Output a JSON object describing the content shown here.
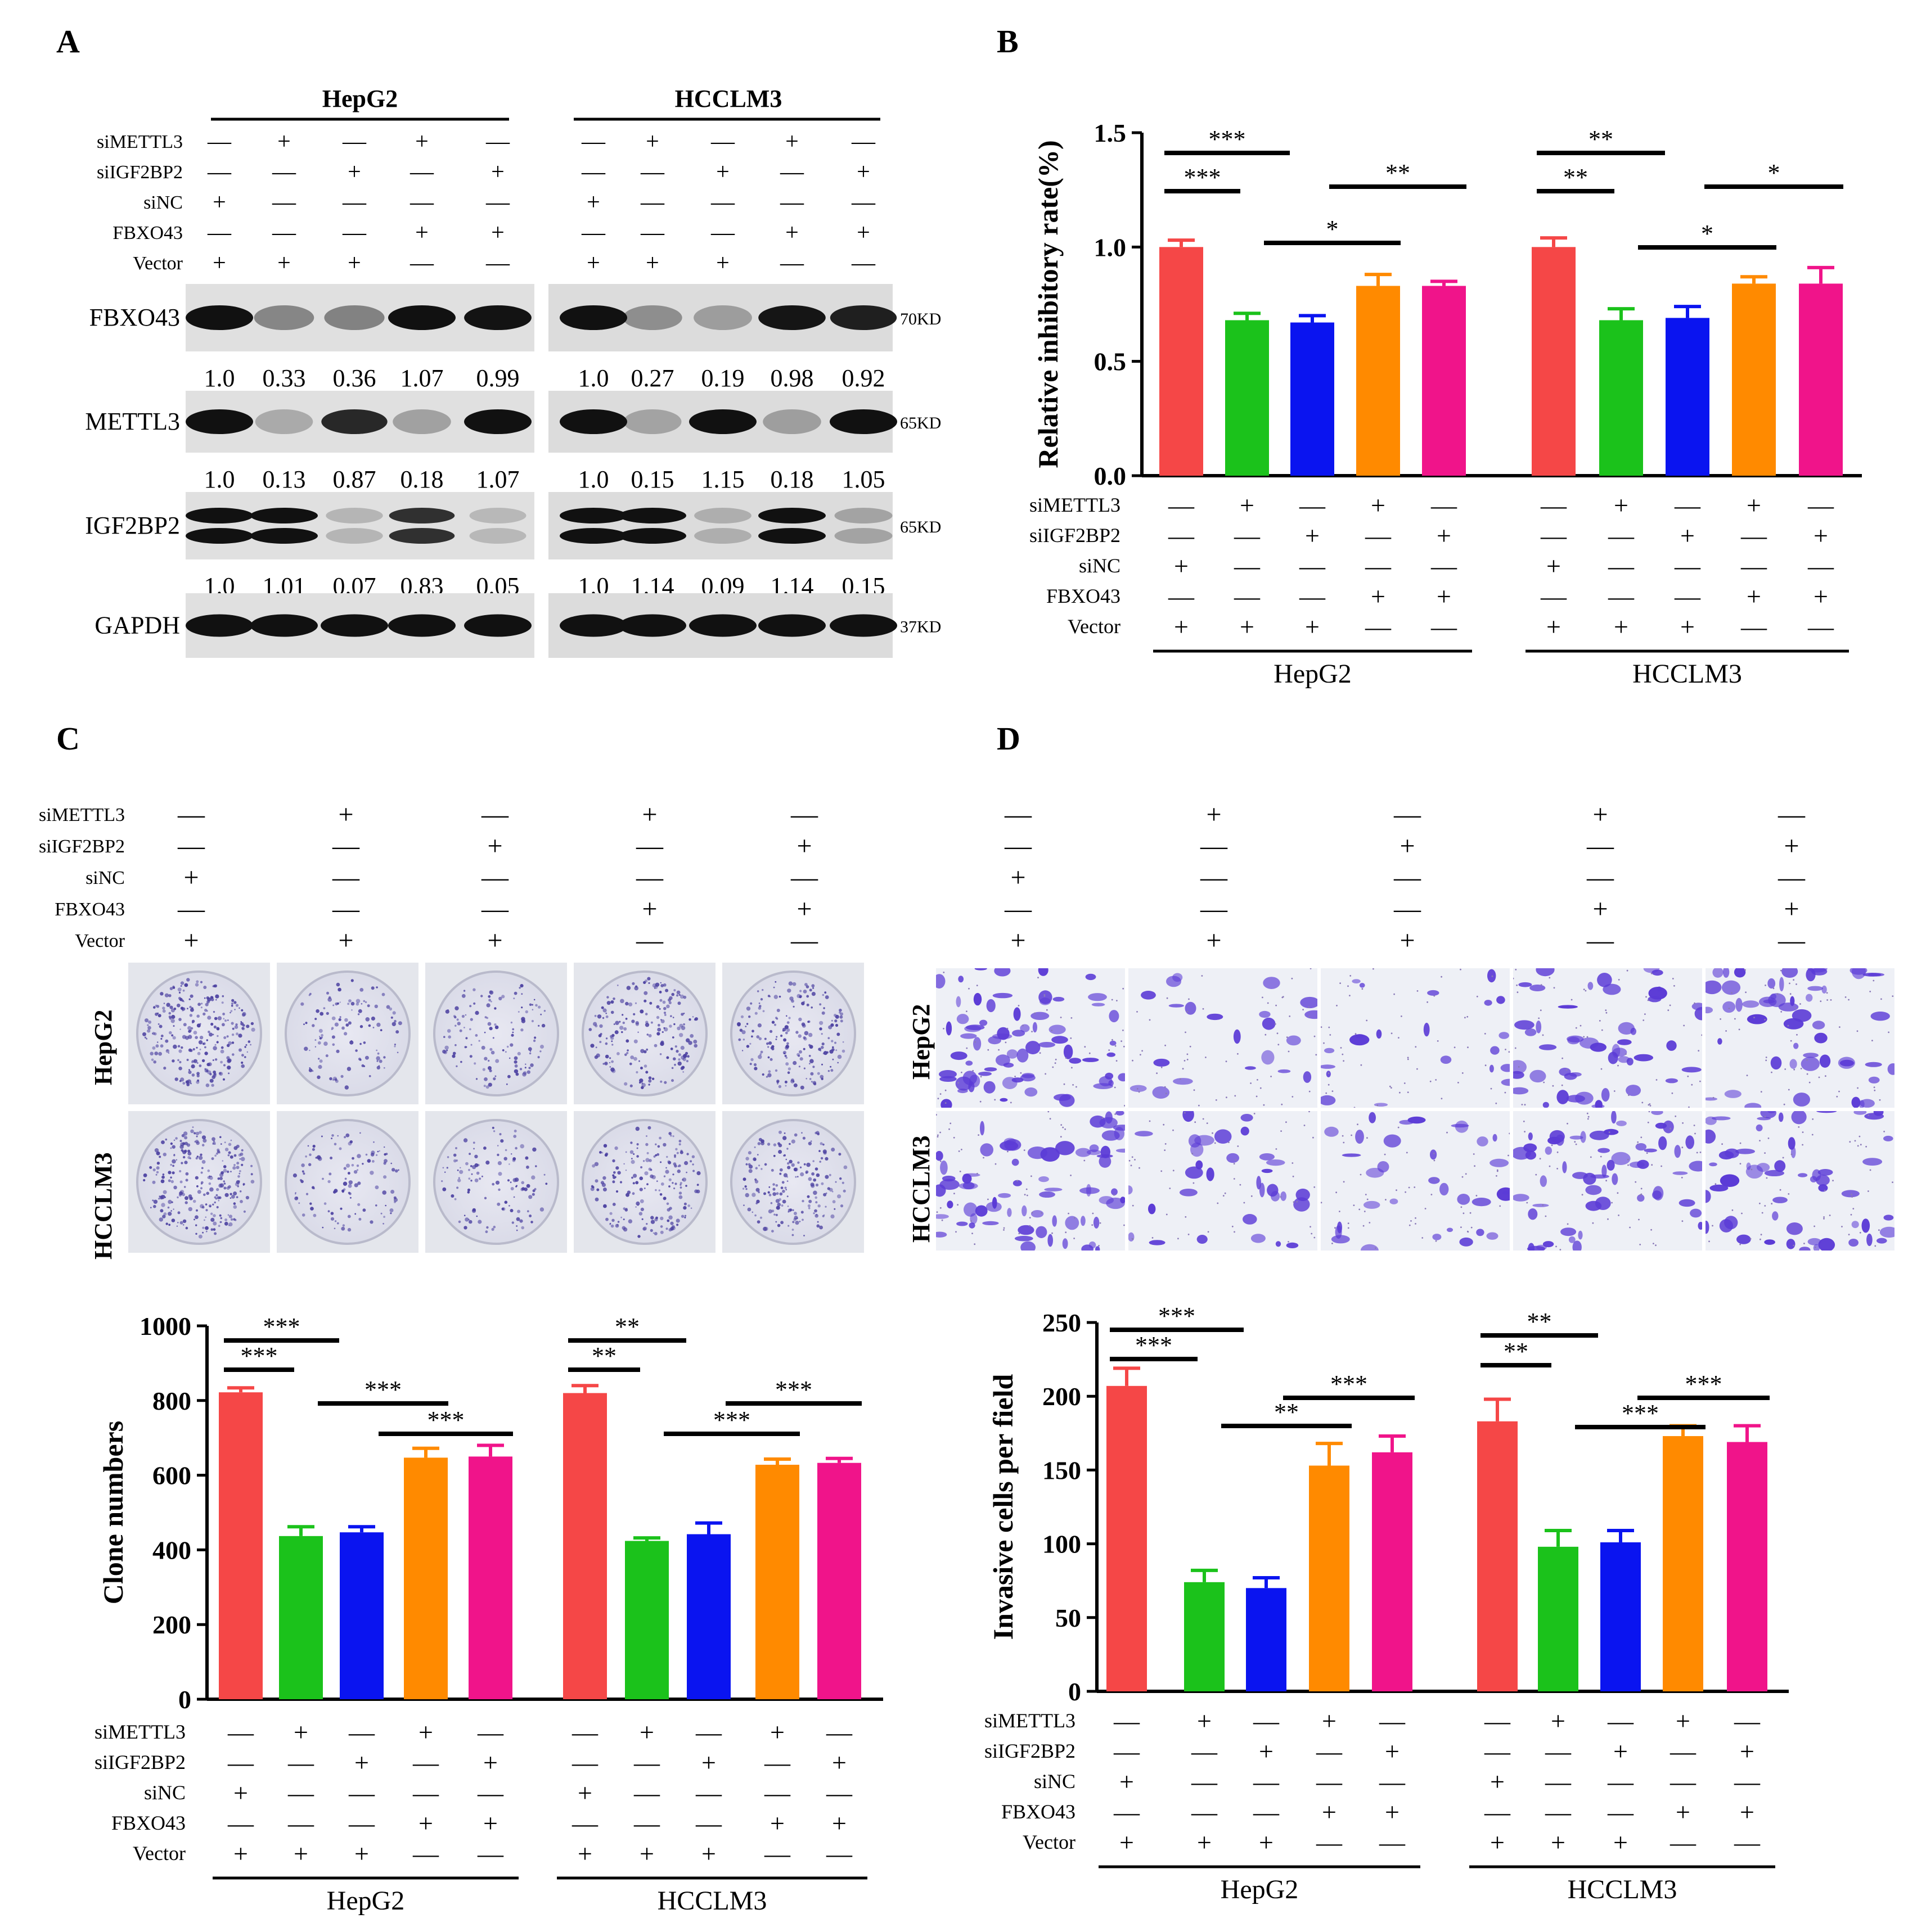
{
  "panels": {
    "A": "A",
    "B": "B",
    "C": "C",
    "D": "D"
  },
  "conditions": {
    "rows": [
      "siMETTL3",
      "siIGF2BP2",
      "siNC",
      "FBXO43",
      "Vector"
    ],
    "signs": [
      [
        "—",
        "+",
        "—",
        "+",
        "—"
      ],
      [
        "—",
        "—",
        "+",
        "—",
        "+"
      ],
      [
        "+",
        "—",
        "—",
        "—",
        "—"
      ],
      [
        "—",
        "—",
        "—",
        "+",
        "+"
      ],
      [
        "+",
        "+",
        "+",
        "—",
        "—"
      ]
    ]
  },
  "cell_lines": [
    "HepG2",
    "HCCLM3"
  ],
  "colors": [
    "#f54747",
    "#1bc21b",
    "#0a14f0",
    "#ff8a00",
    "#f0148a"
  ],
  "western": {
    "title_left": "HepG2",
    "title_right": "HCCLM3",
    "blots": [
      {
        "name": "FBXO43",
        "kd": "70KD",
        "left": [
          "1.0",
          "0.33",
          "0.36",
          "1.07",
          "0.99"
        ],
        "right": [
          "1.0",
          "0.27",
          "0.19",
          "0.98",
          "0.92"
        ],
        "left_int": [
          1.0,
          0.33,
          0.36,
          1.07,
          0.99
        ],
        "right_int": [
          1.0,
          0.27,
          0.19,
          0.98,
          0.92
        ]
      },
      {
        "name": "METTL3",
        "kd": "65KD",
        "left": [
          "1.0",
          "0.13",
          "0.87",
          "0.18",
          "1.07"
        ],
        "right": [
          "1.0",
          "0.15",
          "1.15",
          "0.18",
          "1.05"
        ],
        "left_int": [
          1.0,
          0.13,
          0.87,
          0.18,
          1.07
        ],
        "right_int": [
          1.0,
          0.15,
          1.15,
          0.18,
          1.05
        ]
      },
      {
        "name": "IGF2BP2",
        "kd": "65KD",
        "left": [
          "1.0",
          "1.01",
          "0.07",
          "0.83",
          "0.05"
        ],
        "right": [
          "1.0",
          "1.14",
          "0.09",
          "1.14",
          "0.15"
        ],
        "left_int": [
          1.0,
          1.01,
          0.07,
          0.83,
          0.05
        ],
        "right_int": [
          1.0,
          1.14,
          0.09,
          1.14,
          0.15
        ]
      },
      {
        "name": "GAPDH",
        "kd": "37KD",
        "left": [],
        "right": [],
        "left_int": [
          1,
          1,
          1,
          1,
          1
        ],
        "right_int": [
          1,
          1,
          1,
          1,
          1
        ]
      }
    ]
  },
  "chart_data": [
    {
      "panel": "B",
      "type": "bar",
      "ylabel": "Relative inhibitory rate(%)",
      "ylim": [
        0,
        1.5
      ],
      "yticks": [
        "0.0",
        "0.5",
        "1.0",
        "1.5"
      ],
      "groups": [
        "HepG2",
        "HCCLM3"
      ],
      "values": [
        [
          1.0,
          0.68,
          0.67,
          0.83,
          0.83
        ],
        [
          1.0,
          0.68,
          0.69,
          0.84,
          0.84
        ]
      ],
      "errors": [
        [
          0.03,
          0.03,
          0.03,
          0.05,
          0.02
        ],
        [
          0.04,
          0.05,
          0.05,
          0.03,
          0.07
        ]
      ],
      "significance": [
        [
          {
            "from": 0,
            "to": 2,
            "label": "***"
          },
          {
            "from": 0,
            "to": 1,
            "label": "***"
          },
          {
            "from": 2,
            "to": 4,
            "label": "**"
          },
          {
            "from": 1,
            "to": 3,
            "label": "*"
          }
        ],
        [
          {
            "from": 0,
            "to": 2,
            "label": "**"
          },
          {
            "from": 0,
            "to": 1,
            "label": "**"
          },
          {
            "from": 2,
            "to": 4,
            "label": "*"
          },
          {
            "from": 1,
            "to": 3,
            "label": "*"
          }
        ]
      ]
    },
    {
      "panel": "C",
      "type": "bar",
      "ylabel": "Clone numbers",
      "ylim": [
        0,
        1000
      ],
      "yticks": [
        "0",
        "200",
        "400",
        "600",
        "800",
        "1000"
      ],
      "groups": [
        "HepG2",
        "HCCLM3"
      ],
      "values": [
        [
          822,
          437,
          447,
          647,
          650
        ],
        [
          820,
          424,
          442,
          628,
          633
        ]
      ],
      "errors": [
        [
          12,
          25,
          15,
          25,
          30
        ],
        [
          20,
          8,
          30,
          15,
          12
        ]
      ],
      "significance": [
        [
          {
            "from": 0,
            "to": 2,
            "label": "***"
          },
          {
            "from": 0,
            "to": 1,
            "label": "***"
          },
          {
            "from": 2,
            "to": 4,
            "label": "***"
          },
          {
            "from": 1,
            "to": 3,
            "label": "***"
          }
        ],
        [
          {
            "from": 0,
            "to": 2,
            "label": "**"
          },
          {
            "from": 0,
            "to": 1,
            "label": "**"
          },
          {
            "from": 2,
            "to": 4,
            "label": "***"
          },
          {
            "from": 1,
            "to": 3,
            "label": "***"
          }
        ]
      ]
    },
    {
      "panel": "D",
      "type": "bar",
      "ylabel": "Invasive cells per field",
      "ylim": [
        0,
        250
      ],
      "yticks": [
        "0",
        "50",
        "100",
        "150",
        "200",
        "250"
      ],
      "groups": [
        "HepG2",
        "HCCLM3"
      ],
      "values": [
        [
          207,
          74,
          70,
          153,
          162
        ],
        [
          183,
          98,
          101,
          173,
          169
        ]
      ],
      "errors": [
        [
          12,
          8,
          7,
          15,
          11
        ],
        [
          15,
          11,
          8,
          7,
          11
        ]
      ],
      "significance": [
        [
          {
            "from": 0,
            "to": 2,
            "label": "***"
          },
          {
            "from": 0,
            "to": 1,
            "label": "***"
          },
          {
            "from": 2,
            "to": 4,
            "label": "***"
          },
          {
            "from": 1,
            "to": 3,
            "label": "**"
          }
        ],
        [
          {
            "from": 0,
            "to": 2,
            "label": "**"
          },
          {
            "from": 0,
            "to": 1,
            "label": "**"
          },
          {
            "from": 2,
            "to": 4,
            "label": "***"
          },
          {
            "from": 1,
            "to": 3,
            "label": "***"
          }
        ]
      ]
    }
  ],
  "clone_density": [
    [
      1.0,
      0.45,
      0.5,
      0.75,
      0.75
    ],
    [
      1.0,
      0.45,
      0.45,
      0.72,
      0.72
    ]
  ],
  "invasion_density": [
    [
      1.0,
      0.3,
      0.3,
      0.7,
      0.75
    ],
    [
      1.0,
      0.45,
      0.45,
      0.8,
      0.8
    ]
  ]
}
